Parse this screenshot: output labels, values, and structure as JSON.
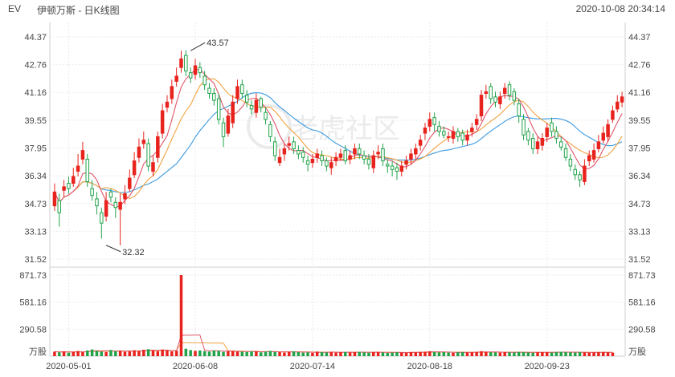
{
  "header": {
    "ticker": "EV",
    "title": "伊顿万斯 - 日K线图",
    "datetime": "2020-10-08 20:34:14"
  },
  "watermark": "老虎社区",
  "colors": {
    "up": "#e8231d",
    "down": "#22a34a",
    "ma5": "#e0566a",
    "ma10": "#f1a240",
    "ma20": "#3b9ae0",
    "grid": "#e9e9e9",
    "label": "#444444"
  },
  "chart_data": {
    "type": "candlestick",
    "price_axis": {
      "ticks": [
        "44.37",
        "42.76",
        "41.16",
        "39.55",
        "37.95",
        "36.34",
        "34.73",
        "33.13",
        "31.52"
      ],
      "range": [
        31.52,
        44.37
      ]
    },
    "volume_axis": {
      "ticks": [
        "871.73",
        "581.16",
        "290.58"
      ],
      "unit": "万股",
      "range": [
        0,
        871.73
      ]
    },
    "x_labels": [
      "2020-05-01",
      "2020-06-08",
      "2020-07-14",
      "2020-08-18",
      "2020-09-23"
    ],
    "x_label_index": [
      3,
      30,
      55,
      80,
      105
    ],
    "annotations": [
      {
        "label": "43.57",
        "index": 29,
        "price": 43.57
      },
      {
        "label": "32.32",
        "index": 11,
        "price": 32.32
      }
    ],
    "closes": [
      35.4,
      34.2,
      35.7,
      35.6,
      36.3,
      36.9,
      37.8,
      36.0,
      35.2,
      34.6,
      33.6,
      34.9,
      35.1,
      34.5,
      34.8,
      35.3,
      36.2,
      37.2,
      38.0,
      38.4,
      36.9,
      37.1,
      38.6,
      40.1,
      40.6,
      41.5,
      42.1,
      43.1,
      42.4,
      42.0,
      42.7,
      42.3,
      41.6,
      41.1,
      40.7,
      39.6,
      38.6,
      39.8,
      40.6,
      41.5,
      41.1,
      40.6,
      40.2,
      40.7,
      40.3,
      39.6,
      38.6,
      37.5,
      37.4,
      37.9,
      38.2,
      37.9,
      37.6,
      37.4,
      37.0,
      37.3,
      37.6,
      37.2,
      36.9,
      37.1,
      37.4,
      37.6,
      37.2,
      37.5,
      37.9,
      37.6,
      37.3,
      37.0,
      37.5,
      37.7,
      37.2,
      36.9,
      36.7,
      36.6,
      36.9,
      37.2,
      37.6,
      37.9,
      38.4,
      39.1,
      39.6,
      39.3,
      38.9,
      38.7,
      38.6,
      38.9,
      38.6,
      38.4,
      38.7,
      39.1,
      39.6,
      41.0,
      41.2,
      40.8,
      40.6,
      40.9,
      41.4,
      41.0,
      40.7,
      39.8,
      38.7,
      38.4,
      37.9,
      38.3,
      38.5,
      39.1,
      38.9,
      38.5,
      38.0,
      37.4,
      36.9,
      36.4,
      36.1,
      36.9,
      37.5,
      37.8,
      38.3,
      38.8,
      39.3,
      40.1,
      40.6,
      40.9
    ],
    "opens": [
      34.6,
      34.9,
      35.5,
      35.9,
      35.9,
      36.6,
      37.3,
      37.3,
      35.6,
      35.0,
      34.2,
      34.0,
      35.4,
      34.8,
      34.4,
      35.0,
      35.6,
      36.4,
      37.4,
      38.2,
      38.2,
      36.6,
      37.4,
      38.8,
      40.3,
      40.8,
      41.8,
      42.6,
      43.3,
      42.3,
      42.2,
      42.6,
      42.1,
      41.4,
      41.1,
      40.8,
      39.4,
      38.8,
      39.4,
      40.8,
      41.6,
      41.0,
      40.4,
      40.0,
      40.8,
      40.0,
      39.3,
      38.3,
      37.1,
      37.6,
      38.1,
      38.3,
      37.8,
      37.7,
      37.2,
      37.1,
      37.4,
      37.5,
      37.2,
      36.8,
      37.2,
      37.4,
      37.8,
      37.3,
      37.6,
      37.9,
      37.5,
      37.3,
      36.8,
      37.6,
      37.9,
      37.0,
      36.9,
      36.8,
      36.6,
      37.0,
      37.3,
      37.6,
      38.1,
      38.8,
      39.2,
      39.7,
      39.2,
      38.9,
      38.6,
      38.5,
      38.9,
      38.8,
      38.4,
      38.9,
      39.3,
      39.8,
      41.1,
      41.5,
      40.9,
      40.5,
      41.1,
      41.6,
      41.2,
      40.5,
      39.6,
      38.9,
      38.5,
      37.9,
      38.1,
      38.6,
      39.4,
      38.9,
      38.3,
      37.9,
      37.3,
      36.7,
      36.4,
      36.0,
      37.2,
      37.3,
      37.9,
      38.4,
      38.6,
      39.6,
      40.2,
      40.6
    ],
    "highs": [
      35.9,
      35.3,
      36.1,
      36.3,
      36.8,
      37.6,
      38.3,
      37.6,
      36.1,
      35.4,
      34.5,
      35.4,
      35.6,
      35.1,
      35.3,
      35.8,
      36.7,
      37.7,
      38.5,
      38.9,
      38.5,
      37.5,
      38.9,
      40.5,
      41.0,
      41.9,
      42.6,
      43.57,
      43.6,
      42.6,
      43.1,
      42.9,
      42.4,
      41.7,
      41.4,
      41.1,
      39.7,
      40.2,
      41.0,
      41.9,
      41.9,
      41.3,
      40.7,
      41.1,
      40.9,
      40.3,
      39.5,
      38.6,
      37.9,
      38.2,
      38.6,
      38.6,
      38.1,
      38.0,
      37.5,
      37.6,
      37.9,
      37.8,
      37.4,
      37.4,
      37.7,
      37.9,
      38.1,
      37.8,
      38.2,
      38.2,
      37.8,
      37.6,
      37.8,
      38.1,
      38.2,
      37.3,
      37.2,
      37.1,
      37.2,
      37.5,
      37.9,
      38.2,
      38.7,
      39.4,
      40.0,
      40.0,
      39.5,
      39.2,
      38.9,
      39.2,
      39.1,
      39.0,
      39.0,
      39.4,
      39.9,
      41.3,
      41.6,
      41.7,
      41.2,
      41.2,
      41.7,
      41.8,
      41.4,
      40.8,
      39.9,
      39.1,
      38.8,
      38.6,
      38.8,
      39.4,
      39.7,
      39.2,
      38.6,
      38.2,
      37.6,
      37.0,
      36.6,
      37.3,
      37.8,
      38.2,
      38.7,
      39.2,
      39.6,
      40.4,
      41.0,
      41.2
    ],
    "lows": [
      34.3,
      33.4,
      35.1,
      35.3,
      35.7,
      36.3,
      37.0,
      35.7,
      34.9,
      34.1,
      32.7,
      33.7,
      34.8,
      33.9,
      32.32,
      34.7,
      35.4,
      36.2,
      37.1,
      37.9,
      36.6,
      36.3,
      37.1,
      38.5,
      40.0,
      40.5,
      41.5,
      42.3,
      42.1,
      41.7,
      41.9,
      42.0,
      41.3,
      40.8,
      40.4,
      39.3,
      38.0,
      38.6,
      39.1,
      40.5,
      40.8,
      40.3,
      39.9,
      39.7,
      40.0,
      39.3,
      38.3,
      37.2,
      36.9,
      37.2,
      37.8,
      37.6,
      37.3,
      37.1,
      36.6,
      36.8,
      37.1,
      36.9,
      36.6,
      36.4,
      36.9,
      37.2,
      37.0,
      37.0,
      37.3,
      37.3,
      37.0,
      36.7,
      36.5,
      37.3,
      36.9,
      36.5,
      36.3,
      36.1,
      36.3,
      36.7,
      37.0,
      37.3,
      37.8,
      38.4,
      38.9,
      38.9,
      38.6,
      38.5,
      38.3,
      38.2,
      38.3,
      38.1,
      38.1,
      38.6,
      39.0,
      39.5,
      40.8,
      40.5,
      40.3,
      40.2,
      40.8,
      40.7,
      40.4,
      39.4,
      38.4,
      38.1,
      37.6,
      37.6,
      37.8,
      38.3,
      38.6,
      38.2,
      37.8,
      37.2,
      36.6,
      36.1,
      35.7,
      35.8,
      36.9,
      37.1,
      37.7,
      38.2,
      38.3,
      39.4,
      40.0,
      40.3
    ],
    "volumes": [
      48,
      41,
      52,
      37,
      46,
      55,
      43,
      61,
      72,
      58,
      49,
      44,
      66,
      53,
      59,
      47,
      51,
      63,
      57,
      68,
      75,
      60,
      54,
      71,
      64,
      52,
      58,
      871.73,
      80,
      65,
      57,
      61,
      54,
      49,
      62,
      58,
      46,
      52,
      55,
      49,
      47,
      44,
      50,
      53,
      41,
      48,
      56,
      45,
      43,
      39,
      47,
      52,
      44,
      38,
      41,
      36,
      49,
      43,
      40,
      46,
      38,
      42,
      45,
      39,
      44,
      47,
      41,
      37,
      43,
      46,
      40,
      35,
      38,
      42,
      39,
      37,
      44,
      41,
      46,
      48,
      52,
      45,
      40,
      43,
      38,
      36,
      41,
      44,
      39,
      42,
      47,
      53,
      45,
      42,
      40,
      38,
      44,
      41,
      39,
      46,
      43,
      40,
      37,
      41,
      44,
      42,
      39,
      45,
      47,
      43,
      41,
      38,
      44,
      40,
      37,
      39,
      42,
      45,
      41,
      38
    ],
    "vol_up": [
      true,
      false,
      true,
      false,
      true,
      true,
      true,
      false,
      false,
      false,
      false,
      true,
      false,
      false,
      true,
      true,
      true,
      true,
      true,
      true,
      false,
      true,
      true,
      true,
      true,
      true,
      true,
      true,
      false,
      false,
      true,
      false,
      false,
      false,
      false,
      false,
      false,
      true,
      true,
      true,
      false,
      false,
      false,
      true,
      false,
      false,
      false,
      false,
      true,
      true,
      true,
      false,
      false,
      false,
      false,
      true,
      true,
      false,
      false,
      true,
      true,
      true,
      false,
      true,
      true,
      false,
      false,
      false,
      true,
      true,
      false,
      false,
      false,
      false,
      true,
      true,
      true,
      true,
      true,
      true,
      true,
      false,
      false,
      false,
      false,
      true,
      false,
      false,
      true,
      true,
      true,
      true,
      true,
      false,
      false,
      true,
      true,
      false,
      false,
      false,
      false,
      false,
      false,
      true,
      true,
      true,
      false,
      false,
      false,
      false,
      false,
      false,
      false,
      true,
      true,
      true,
      true,
      true,
      true,
      true,
      true,
      true
    ]
  }
}
